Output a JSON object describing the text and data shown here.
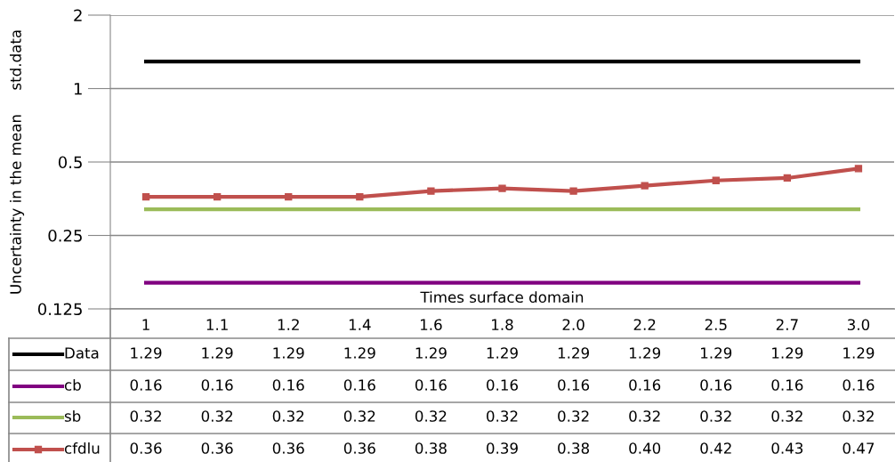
{
  "chart_data": {
    "type": "line",
    "xlabel": "Times surface domain",
    "ylabel": "Uncertainty in the mean     std.data",
    "categories": [
      "1",
      "1.1",
      "1.2",
      "1.4",
      "1.6",
      "1.8",
      "2.0",
      "2.2",
      "2.5",
      "2.7",
      "3.0"
    ],
    "log": "y",
    "ylim": [
      0.125,
      2
    ],
    "yticks": [
      0.125,
      0.25,
      0.5,
      1,
      2
    ],
    "grid": "y",
    "legend": "bottom left",
    "series": [
      {
        "name": "Data",
        "color": "#000000",
        "marker": "none",
        "values": [
          1.29,
          1.29,
          1.29,
          1.29,
          1.29,
          1.29,
          1.29,
          1.29,
          1.29,
          1.29,
          1.29
        ],
        "value_labels": [
          "1.29",
          "1.29",
          "1.29",
          "1.29",
          "1.29",
          "1.29",
          "1.29",
          "1.29",
          "1.29",
          "1.29",
          "1.29"
        ]
      },
      {
        "name": "cb",
        "color": "#800080",
        "marker": "none",
        "values": [
          0.16,
          0.16,
          0.16,
          0.16,
          0.16,
          0.16,
          0.16,
          0.16,
          0.16,
          0.16,
          0.16
        ],
        "value_labels": [
          "0.16",
          "0.16",
          "0.16",
          "0.16",
          "0.16",
          "0.16",
          "0.16",
          "0.16",
          "0.16",
          "0.16",
          "0.16"
        ]
      },
      {
        "name": "sb",
        "color": "#9bbb59",
        "marker": "none",
        "values": [
          0.32,
          0.32,
          0.32,
          0.32,
          0.32,
          0.32,
          0.32,
          0.32,
          0.32,
          0.32,
          0.32
        ],
        "value_labels": [
          "0.32",
          "0.32",
          "0.32",
          "0.32",
          "0.32",
          "0.32",
          "0.32",
          "0.32",
          "0.32",
          "0.32",
          "0.32"
        ]
      },
      {
        "name": "cfdlu",
        "color": "#c0504d",
        "marker": "square",
        "values": [
          0.36,
          0.36,
          0.36,
          0.36,
          0.38,
          0.39,
          0.38,
          0.4,
          0.42,
          0.43,
          0.47
        ],
        "value_labels": [
          "0.36",
          "0.36",
          "0.36",
          "0.36",
          "0.38",
          "0.39",
          "0.38",
          "0.40",
          "0.42",
          "0.43",
          "0.47"
        ]
      }
    ]
  }
}
